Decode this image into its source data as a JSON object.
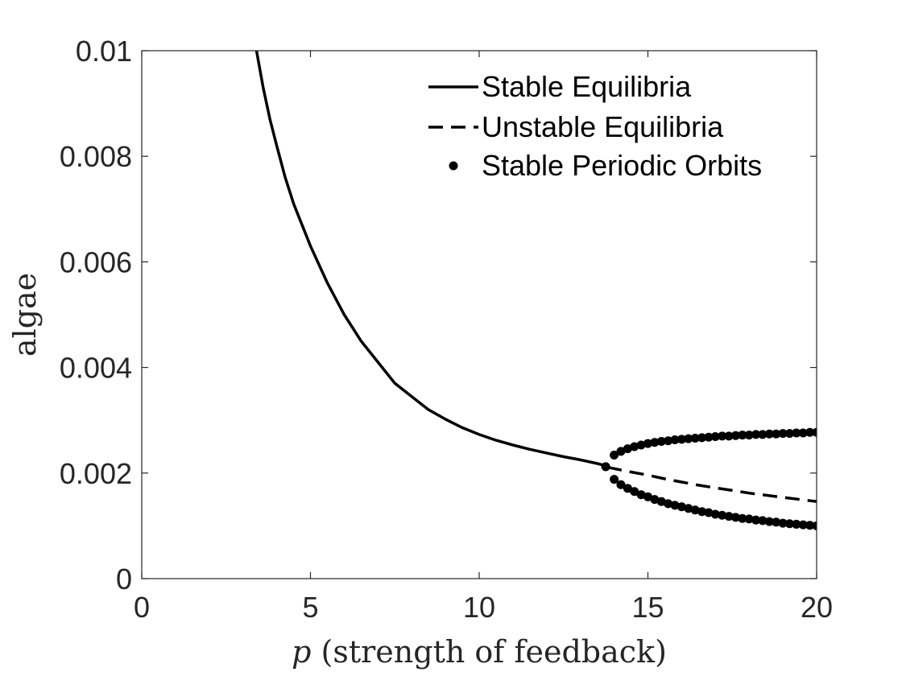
{
  "chart_data": {
    "type": "line",
    "xlabel_var": "p",
    "xlabel_rest": " (strength of feedback)",
    "ylabel": "algae",
    "xlim": [
      0,
      20
    ],
    "ylim": [
      0,
      0.01
    ],
    "xticks": [
      0,
      5,
      10,
      15,
      20
    ],
    "xtick_labels": [
      "0",
      "5",
      "10",
      "15",
      "20"
    ],
    "yticks": [
      0,
      0.002,
      0.004,
      0.006,
      0.008,
      0.01
    ],
    "ytick_labels": [
      "0",
      "0.002",
      "0.004",
      "0.006",
      "0.008",
      "0.01"
    ],
    "grid": false,
    "legend_position": "top-right",
    "series": [
      {
        "name": "Stable Equilibria",
        "style": "solid",
        "x": [
          3.4,
          3.6,
          3.8,
          4.0,
          4.25,
          4.5,
          5.0,
          5.5,
          6.0,
          6.5,
          7.0,
          7.5,
          8.0,
          8.5,
          9.0,
          9.5,
          10.0,
          10.5,
          11.0,
          11.5,
          12.0,
          12.5,
          13.0,
          13.5,
          13.8
        ],
        "y": [
          0.01,
          0.0093,
          0.0087,
          0.0082,
          0.0076,
          0.0071,
          0.0063,
          0.0056,
          0.005,
          0.0045,
          0.0041,
          0.0037,
          0.00345,
          0.0032,
          0.00302,
          0.00286,
          0.00273,
          0.00262,
          0.00253,
          0.00245,
          0.00238,
          0.00231,
          0.00225,
          0.00218,
          0.00213
        ]
      },
      {
        "name": "Unstable Equilibria",
        "style": "dashed",
        "x": [
          13.8,
          14.5,
          15.0,
          15.5,
          16.0,
          16.5,
          17.0,
          17.5,
          18.0,
          18.5,
          19.0,
          19.5,
          20.0
        ],
        "y": [
          0.00211,
          0.00202,
          0.00196,
          0.00189,
          0.00183,
          0.00177,
          0.00172,
          0.00167,
          0.00162,
          0.00158,
          0.00154,
          0.0015,
          0.00146
        ]
      },
      {
        "name": "Stable Periodic Orbits",
        "style": "markers",
        "x": [
          13.75,
          14.0,
          14.2,
          14.4,
          14.6,
          14.8,
          15.0,
          15.2,
          15.4,
          15.6,
          15.8,
          16.0,
          16.2,
          16.4,
          16.6,
          16.8,
          17.0,
          17.2,
          17.4,
          17.6,
          17.8,
          18.0,
          18.2,
          18.4,
          18.6,
          18.8,
          19.0,
          19.2,
          19.4,
          19.6,
          19.8,
          20.0,
          14.0,
          14.2,
          14.4,
          14.6,
          14.8,
          15.0,
          15.2,
          15.4,
          15.6,
          15.8,
          16.0,
          16.2,
          16.4,
          16.6,
          16.8,
          17.0,
          17.2,
          17.4,
          17.6,
          17.8,
          18.0,
          18.2,
          18.4,
          18.6,
          18.8,
          19.0,
          19.2,
          19.4,
          19.6,
          19.8,
          20.0
        ],
        "y": [
          0.00212,
          0.00234,
          0.00241,
          0.00246,
          0.0025,
          0.00253,
          0.00256,
          0.00258,
          0.0026,
          0.00261,
          0.00263,
          0.00264,
          0.00265,
          0.00266,
          0.00267,
          0.00268,
          0.00269,
          0.0027,
          0.0027,
          0.00271,
          0.00272,
          0.00272,
          0.00273,
          0.00273,
          0.00274,
          0.00274,
          0.00275,
          0.00275,
          0.00276,
          0.00276,
          0.00277,
          0.00277,
          0.00188,
          0.00178,
          0.00171,
          0.00165,
          0.00159,
          0.00155,
          0.0015,
          0.00146,
          0.00142,
          0.00139,
          0.00136,
          0.00133,
          0.0013,
          0.00127,
          0.00125,
          0.00122,
          0.0012,
          0.00118,
          0.00116,
          0.00114,
          0.00113,
          0.00111,
          0.0011,
          0.00108,
          0.00107,
          0.00105,
          0.00104,
          0.00103,
          0.00102,
          0.00101,
          0.001
        ]
      }
    ]
  }
}
